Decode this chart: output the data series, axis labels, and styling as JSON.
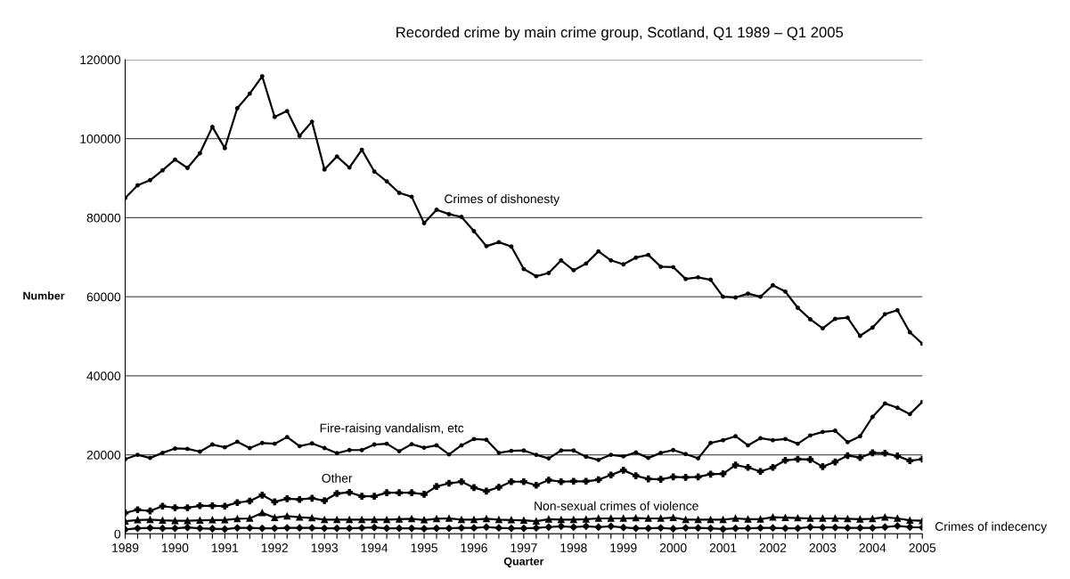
{
  "chart_data": {
    "type": "line",
    "title": "Recorded crime by main crime group, Scotland, Q1 1989 – Q1 2005",
    "xlabel": "Quarter",
    "ylabel": "Number",
    "x": [
      1989,
      1989.25,
      1989.5,
      1989.75,
      1990,
      1990.25,
      1990.5,
      1990.75,
      1991,
      1991.25,
      1991.5,
      1991.75,
      1992,
      1992.25,
      1992.5,
      1992.75,
      1993,
      1993.25,
      1993.5,
      1993.75,
      1994,
      1994.25,
      1994.5,
      1994.75,
      1995,
      1995.25,
      1995.5,
      1995.75,
      1996,
      1996.25,
      1996.5,
      1996.75,
      1997,
      1997.25,
      1997.5,
      1997.75,
      1998,
      1998.25,
      1998.5,
      1998.75,
      1999,
      1999.25,
      1999.5,
      1999.75,
      2000,
      2000.25,
      2000.5,
      2000.75,
      2001,
      2001.25,
      2001.5,
      2001.75,
      2002,
      2002.25,
      2002.5,
      2002.75,
      2003,
      2003.25,
      2003.5,
      2003.75,
      2004,
      2004.25,
      2004.5,
      2004.75,
      2005
    ],
    "series": [
      {
        "name": "Crimes of dishonesty",
        "color": "#000000",
        "marker": "circle",
        "values": [
          85000,
          88200,
          89500,
          92000,
          94700,
          92600,
          96300,
          103000,
          97600,
          107700,
          111400,
          115800,
          105500,
          107000,
          100700,
          104300,
          92200,
          95500,
          92700,
          97200,
          91700,
          89200,
          86300,
          85300,
          78600,
          82000,
          80900,
          80200,
          76600,
          72800,
          73800,
          72700,
          67000,
          65200,
          66000,
          69200,
          66700,
          68400,
          71500,
          69200,
          68200,
          69900,
          70600,
          67600,
          67500,
          64500,
          64900,
          64300,
          60000,
          59800,
          60800,
          60000,
          62900,
          61300,
          57200,
          54300,
          52000,
          54400,
          54700,
          50100,
          52200,
          55600,
          56600,
          51000,
          48100
        ]
      },
      {
        "name": "Fire-raising vandalism, etc",
        "color": "#000000",
        "marker": "circle",
        "values": [
          18900,
          20000,
          19200,
          20500,
          21600,
          21500,
          20800,
          22600,
          21900,
          23300,
          21700,
          23000,
          22800,
          24500,
          22200,
          22900,
          21700,
          20400,
          21200,
          21200,
          22600,
          22800,
          20900,
          22700,
          21800,
          22400,
          20100,
          22400,
          24000,
          23800,
          20500,
          21000,
          21100,
          20000,
          19100,
          21100,
          21100,
          19500,
          18700,
          20000,
          19600,
          20600,
          19200,
          20500,
          21200,
          20200,
          19100,
          23000,
          23700,
          24700,
          22400,
          24200,
          23700,
          24000,
          22800,
          24900,
          25800,
          26100,
          23200,
          24700,
          29600,
          33000,
          31900,
          30300,
          33400
        ]
      },
      {
        "name": "Other",
        "color": "#000000",
        "marker": "cross",
        "values": [
          5300,
          6100,
          5800,
          7000,
          6600,
          6600,
          7100,
          7100,
          7000,
          7900,
          8300,
          9800,
          8100,
          8900,
          8700,
          9000,
          8400,
          10200,
          10500,
          9500,
          9500,
          10400,
          10400,
          10400,
          10000,
          12000,
          12800,
          13200,
          11700,
          10800,
          11800,
          13200,
          13200,
          12300,
          13600,
          13200,
          13300,
          13300,
          13700,
          14900,
          16100,
          14700,
          13900,
          13800,
          14400,
          14300,
          14400,
          15100,
          15200,
          17400,
          16800,
          15800,
          16800,
          18600,
          18900,
          18800,
          17000,
          18200,
          19800,
          19300,
          20500,
          20400,
          19700,
          18500,
          18900
        ]
      },
      {
        "name": "Non-sexual crimes of violence",
        "color": "#000000",
        "marker": "triangle",
        "values": [
          3200,
          3500,
          3600,
          3400,
          3300,
          3300,
          3400,
          3500,
          3500,
          3800,
          3900,
          5300,
          4100,
          4500,
          4200,
          4000,
          3600,
          3600,
          3600,
          3600,
          3600,
          3600,
          3700,
          3800,
          3500,
          3800,
          3900,
          3600,
          3600,
          3800,
          3600,
          3500,
          3400,
          3200,
          3700,
          3600,
          3600,
          3700,
          3900,
          3900,
          3900,
          4000,
          3900,
          3900,
          4100,
          3600,
          3600,
          3600,
          3600,
          3900,
          3700,
          3700,
          4200,
          4100,
          4000,
          3900,
          3900,
          3900,
          3800,
          3700,
          3800,
          4200,
          3900,
          3400,
          3300
        ]
      },
      {
        "name": "Crimes of indecency",
        "color": "#000000",
        "marker": "diamond",
        "values": [
          1100,
          1400,
          1500,
          1400,
          1400,
          1600,
          1400,
          1300,
          1200,
          1500,
          1500,
          1400,
          1400,
          1500,
          1500,
          1500,
          1400,
          1400,
          1400,
          1500,
          1600,
          1400,
          1400,
          1400,
          1300,
          1400,
          1400,
          1500,
          1500,
          1700,
          1500,
          1400,
          1400,
          1500,
          1700,
          1900,
          1700,
          1900,
          1700,
          1900,
          1600,
          1400,
          1400,
          1500,
          1300,
          1500,
          1500,
          1400,
          1200,
          1400,
          1400,
          1500,
          1500,
          1400,
          1400,
          1700,
          1600,
          1600,
          1500,
          1500,
          1500,
          1700,
          2000,
          1700,
          1600
        ]
      }
    ],
    "xlim": [
      1989,
      2005
    ],
    "xticks": [
      1989,
      {
        "value": 1989.25,
        "label": null
      },
      {
        "value": 1989.5,
        "label": null
      },
      {
        "value": 1989.75,
        "label": null
      },
      1990,
      {
        "value": 1990.25,
        "label": null
      },
      {
        "value": 1990.5,
        "label": null
      },
      {
        "value": 1990.75,
        "label": null
      },
      1991,
      {
        "value": 1991.25,
        "label": null
      },
      {
        "value": 1991.5,
        "label": null
      },
      {
        "value": 1991.75,
        "label": null
      },
      1992,
      {
        "value": 1992.25,
        "label": null
      },
      {
        "value": 1992.5,
        "label": null
      },
      {
        "value": 1992.75,
        "label": null
      },
      1993,
      {
        "value": 1993.25,
        "label": null
      },
      {
        "value": 1993.5,
        "label": null
      },
      {
        "value": 1993.75,
        "label": null
      },
      1994,
      {
        "value": 1994.25,
        "label": null
      },
      {
        "value": 1994.5,
        "label": null
      },
      {
        "value": 1994.75,
        "label": null
      },
      1995,
      {
        "value": 1995.25,
        "label": null
      },
      {
        "value": 1995.5,
        "label": null
      },
      {
        "value": 1995.75,
        "label": null
      },
      1996,
      {
        "value": 1996.25,
        "label": null
      },
      {
        "value": 1996.5,
        "label": null
      },
      {
        "value": 1996.75,
        "label": null
      },
      1997,
      {
        "value": 1997.25,
        "label": null
      },
      {
        "value": 1997.5,
        "label": null
      },
      {
        "value": 1997.75,
        "label": null
      },
      1998,
      {
        "value": 1998.25,
        "label": null
      },
      {
        "value": 1998.5,
        "label": null
      },
      {
        "value": 1998.75,
        "label": null
      },
      1999,
      {
        "value": 1999.25,
        "label": null
      },
      {
        "value": 1999.5,
        "label": null
      },
      {
        "value": 1999.75,
        "label": null
      },
      2000,
      {
        "value": 2000.25,
        "label": null
      },
      {
        "value": 2000.5,
        "label": null
      },
      {
        "value": 2000.75,
        "label": null
      },
      2001,
      {
        "value": 2001.25,
        "label": null
      },
      {
        "value": 2001.5,
        "label": null
      },
      {
        "value": 2001.75,
        "label": null
      },
      2002,
      {
        "value": 2002.25,
        "label": null
      },
      {
        "value": 2002.5,
        "label": null
      },
      {
        "value": 2002.75,
        "label": null
      },
      2003,
      {
        "value": 2003.25,
        "label": null
      },
      {
        "value": 2003.5,
        "label": null
      },
      {
        "value": 2003.75,
        "label": null
      },
      2004,
      {
        "value": 2004.25,
        "label": null
      },
      {
        "value": 2004.5,
        "label": null
      },
      {
        "value": 2004.75,
        "label": null
      },
      2005
    ],
    "ylim": [
      0,
      120000
    ],
    "yticks": [
      0,
      20000,
      40000,
      60000,
      80000,
      100000,
      120000
    ],
    "grid": "y",
    "legend": false,
    "line_style": "solid"
  }
}
